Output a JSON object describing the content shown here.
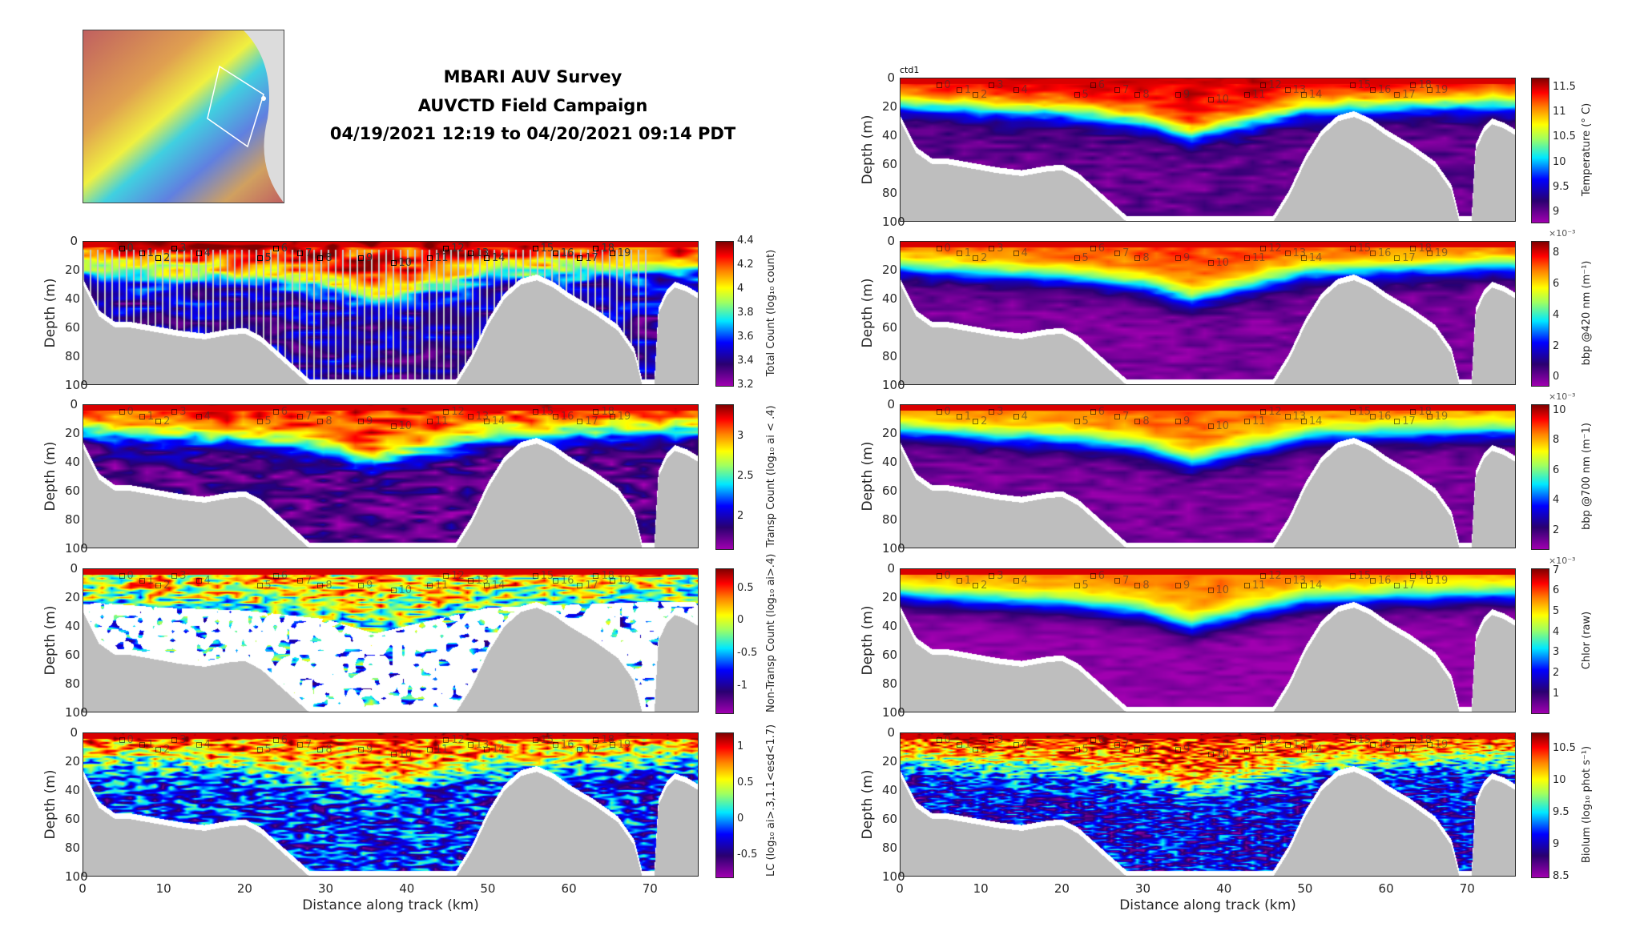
{
  "header": {
    "title_lines": [
      "MBARI AUV Survey",
      "AUVCTD Field Campaign",
      "04/19/2021 12:19 to 04/20/2021 09:14 PDT"
    ]
  },
  "map_inset": {
    "label": "survey track map"
  },
  "ctd_label": "ctd1",
  "x_axis": {
    "label": "Distance along track (km)",
    "ticks": [
      "0",
      "10",
      "20",
      "30",
      "40",
      "50",
      "60",
      "70"
    ],
    "xlim": [
      0,
      76
    ]
  },
  "y_axis": {
    "label": "Depth (m)",
    "ticks": [
      "0",
      "20",
      "40",
      "60",
      "80",
      "100"
    ],
    "ylim": [
      100,
      0
    ]
  },
  "stations": [
    {
      "label": "0",
      "km": 4.5
    },
    {
      "label": "1",
      "km": 7
    },
    {
      "label": "2",
      "km": 9
    },
    {
      "label": "3",
      "km": 11
    },
    {
      "label": "4",
      "km": 14
    },
    {
      "label": "5",
      "km": 21.5
    },
    {
      "label": "6",
      "km": 23.5
    },
    {
      "label": "7",
      "km": 26.5
    },
    {
      "label": "8",
      "km": 29
    },
    {
      "label": "9",
      "km": 34
    },
    {
      "label": "10",
      "km": 38
    },
    {
      "label": "11",
      "km": 42.5
    },
    {
      "label": "12",
      "km": 44.5
    },
    {
      "label": "13",
      "km": 47.5
    },
    {
      "label": "14",
      "km": 49.5
    },
    {
      "label": "15",
      "km": 55.5
    },
    {
      "label": "16",
      "km": 58
    },
    {
      "label": "17",
      "km": 61
    },
    {
      "label": "18",
      "km": 63
    },
    {
      "label": "19",
      "km": 65
    }
  ],
  "chart_data": [
    {
      "type": "heatmap",
      "column": "left",
      "row": 1,
      "colorbar_label": "Total Count (log₁₀ count)",
      "ticks": [
        "4.4",
        "4.2",
        "4",
        "3.8",
        "3.6",
        "3.4",
        "3.2"
      ],
      "clim": [
        3.2,
        4.4
      ],
      "exponent": ""
    },
    {
      "type": "heatmap",
      "column": "left",
      "row": 2,
      "colorbar_label": "Transp Count (log₁₀ ai < .4)",
      "ticks": [
        "3",
        "2.5",
        "2"
      ],
      "clim": [
        1.6,
        3.4
      ],
      "exponent": ""
    },
    {
      "type": "heatmap",
      "column": "left",
      "row": 3,
      "colorbar_label": "Non-Transp Count (log₁₀ ai>.4)",
      "ticks": [
        "0.5",
        "0",
        "-0.5",
        "-1"
      ],
      "clim": [
        -1.4,
        0.8
      ],
      "exponent": ""
    },
    {
      "type": "heatmap",
      "column": "left",
      "row": 4,
      "colorbar_label": "LC (log₁₀ ai>.3,1.1<esd<1.7)",
      "ticks": [
        "1",
        "0.5",
        "0",
        "-0.5"
      ],
      "clim": [
        -0.8,
        1.2
      ],
      "exponent": ""
    },
    {
      "type": "heatmap",
      "column": "right",
      "row": 0,
      "colorbar_label": "Temperature (° C)",
      "ticks": [
        "11.5",
        "11",
        "10.5",
        "10",
        "9.5",
        "9"
      ],
      "clim": [
        8.8,
        11.7
      ],
      "exponent": ""
    },
    {
      "type": "heatmap",
      "column": "right",
      "row": 1,
      "colorbar_label": "bbp @420 nm (m⁻¹)",
      "ticks": [
        "8",
        "6",
        "4",
        "2",
        "0"
      ],
      "clim": [
        -0.5,
        8.8
      ],
      "exponent": "×10⁻³"
    },
    {
      "type": "heatmap",
      "column": "right",
      "row": 2,
      "colorbar_label": "bbp @700 nm (m⁻1)",
      "ticks": [
        "10",
        "8",
        "6",
        "4",
        "2"
      ],
      "clim": [
        0.8,
        10.4
      ],
      "exponent": "×10⁻³"
    },
    {
      "type": "heatmap",
      "column": "right",
      "row": 3,
      "colorbar_label": "Chlor (raw)",
      "ticks": [
        "7",
        "6",
        "5",
        "4",
        "3",
        "2",
        "1"
      ],
      "clim": [
        0.1,
        7.1
      ],
      "exponent": "×10⁻³"
    },
    {
      "type": "heatmap",
      "column": "right",
      "row": 4,
      "colorbar_label": "Biolum (log₁₀ phot s⁻¹)",
      "ticks": [
        "10.5",
        "10",
        "9.5",
        "9",
        "8.5"
      ],
      "clim": [
        8.5,
        10.75
      ],
      "exponent": ""
    }
  ],
  "bathymetry_km_m": [
    [
      0,
      30
    ],
    [
      2,
      52
    ],
    [
      4,
      60
    ],
    [
      6,
      60
    ],
    [
      9,
      63
    ],
    [
      12,
      66
    ],
    [
      15,
      68
    ],
    [
      18,
      65
    ],
    [
      20,
      64
    ],
    [
      22,
      70
    ],
    [
      24,
      80
    ],
    [
      26,
      90
    ],
    [
      28,
      100
    ],
    [
      46,
      100
    ],
    [
      48,
      82
    ],
    [
      50,
      58
    ],
    [
      52,
      40
    ],
    [
      54,
      30
    ],
    [
      56,
      27
    ],
    [
      58,
      32
    ],
    [
      60,
      40
    ],
    [
      63,
      50
    ],
    [
      66,
      62
    ],
    [
      68,
      78
    ],
    [
      69,
      100
    ],
    [
      70.5,
      100
    ],
    [
      71,
      50
    ],
    [
      72,
      38
    ],
    [
      73,
      32
    ],
    [
      74.5,
      35
    ],
    [
      76,
      40
    ]
  ],
  "mixed_layer_depth_km_m": [
    [
      0,
      18
    ],
    [
      10,
      22
    ],
    [
      20,
      24
    ],
    [
      30,
      30
    ],
    [
      36,
      40
    ],
    [
      42,
      32
    ],
    [
      50,
      22
    ],
    [
      60,
      20
    ],
    [
      70,
      18
    ],
    [
      76,
      18
    ]
  ]
}
